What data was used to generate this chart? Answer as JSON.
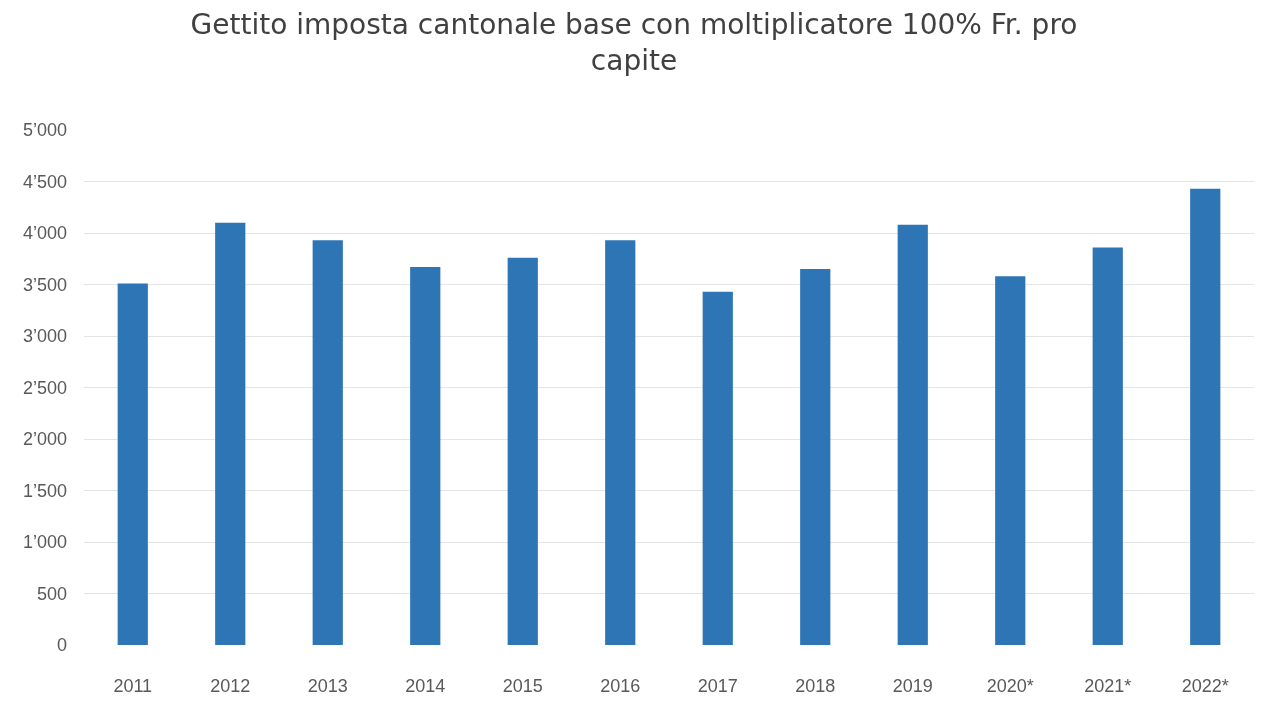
{
  "chart_data": {
    "type": "bar",
    "title": "Gettito imposta cantonale base con moltiplicatore 100% Fr. pro capite",
    "categories": [
      "2011",
      "2012",
      "2013",
      "2014",
      "2015",
      "2016",
      "2017",
      "2018",
      "2019",
      "2020*",
      "2021*",
      "2022*"
    ],
    "values": [
      3510,
      4100,
      3930,
      3670,
      3760,
      3930,
      3430,
      3650,
      4080,
      3580,
      3860,
      4430
    ],
    "color": "#2e75b6",
    "ylim": [
      0,
      5000
    ],
    "yticks": [
      0,
      500,
      {
        "value": 1000,
        "label": "1’000"
      },
      {
        "value": 1500,
        "label": "1’500"
      },
      {
        "value": 2000,
        "label": "2’000"
      },
      {
        "value": 2500,
        "label": "2’500"
      },
      {
        "value": 3000,
        "label": "3’000"
      },
      {
        "value": 3500,
        "label": "3’500"
      },
      {
        "value": 4000,
        "label": "4’000"
      },
      {
        "value": 4500,
        "label": "4’500"
      },
      {
        "value": 5000,
        "label": "5’000"
      }
    ],
    "grid": "y"
  }
}
